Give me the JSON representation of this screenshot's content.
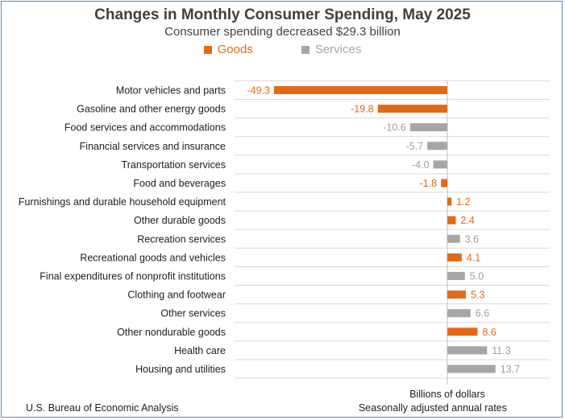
{
  "chart_data": {
    "type": "bar",
    "orientation": "horizontal",
    "title": "Changes in Monthly Consumer Spending, May 2025",
    "subtitle": "Consumer spending decreased $29.3 billion",
    "xlabel": "Billions of dollars",
    "xlim": [
      -52,
      17
    ],
    "grid": true,
    "legend_position": "top-center",
    "legend": [
      {
        "name": "Goods",
        "color": "#e06a1b"
      },
      {
        "name": "Services",
        "color": "#a6a6a6"
      }
    ],
    "bars": [
      {
        "label": "Motor vehicles and parts",
        "value": -49.3,
        "value_label": "-49.3",
        "series": "Goods"
      },
      {
        "label": "Gasoline and other energy goods",
        "value": -19.8,
        "value_label": "-19.8",
        "series": "Goods"
      },
      {
        "label": "Food services and accommodations",
        "value": -10.6,
        "value_label": "-10.6",
        "series": "Services"
      },
      {
        "label": "Financial services and insurance",
        "value": -5.7,
        "value_label": "-5.7",
        "series": "Services"
      },
      {
        "label": "Transportation services",
        "value": -4.0,
        "value_label": "-4.0",
        "series": "Services"
      },
      {
        "label": "Food and beverages",
        "value": -1.8,
        "value_label": "-1.8",
        "series": "Goods"
      },
      {
        "label": "Furnishings and durable household equipment",
        "value": 1.2,
        "value_label": "1.2",
        "series": "Goods"
      },
      {
        "label": "Other durable goods",
        "value": 2.4,
        "value_label": "2.4",
        "series": "Goods"
      },
      {
        "label": "Recreation services",
        "value": 3.6,
        "value_label": "3.6",
        "series": "Services"
      },
      {
        "label": "Recreational goods and vehicles",
        "value": 4.1,
        "value_label": "4.1",
        "series": "Goods"
      },
      {
        "label": "Final expenditures of nonprofit institutions",
        "value": 5.0,
        "value_label": "5.0",
        "series": "Services"
      },
      {
        "label": "Clothing and footwear",
        "value": 5.3,
        "value_label": "5.3",
        "series": "Goods"
      },
      {
        "label": "Other services",
        "value": 6.6,
        "value_label": "6.6",
        "series": "Services"
      },
      {
        "label": "Other nondurable goods",
        "value": 8.6,
        "value_label": "8.6",
        "series": "Goods"
      },
      {
        "label": "Health care",
        "value": 11.3,
        "value_label": "11.3",
        "series": "Services"
      },
      {
        "label": "Housing and utilities",
        "value": 13.7,
        "value_label": "13.7",
        "series": "Services"
      }
    ]
  },
  "footer": {
    "source": "U.S. Bureau of Economic Analysis",
    "note": "Seasonally adjusted annual rates"
  }
}
